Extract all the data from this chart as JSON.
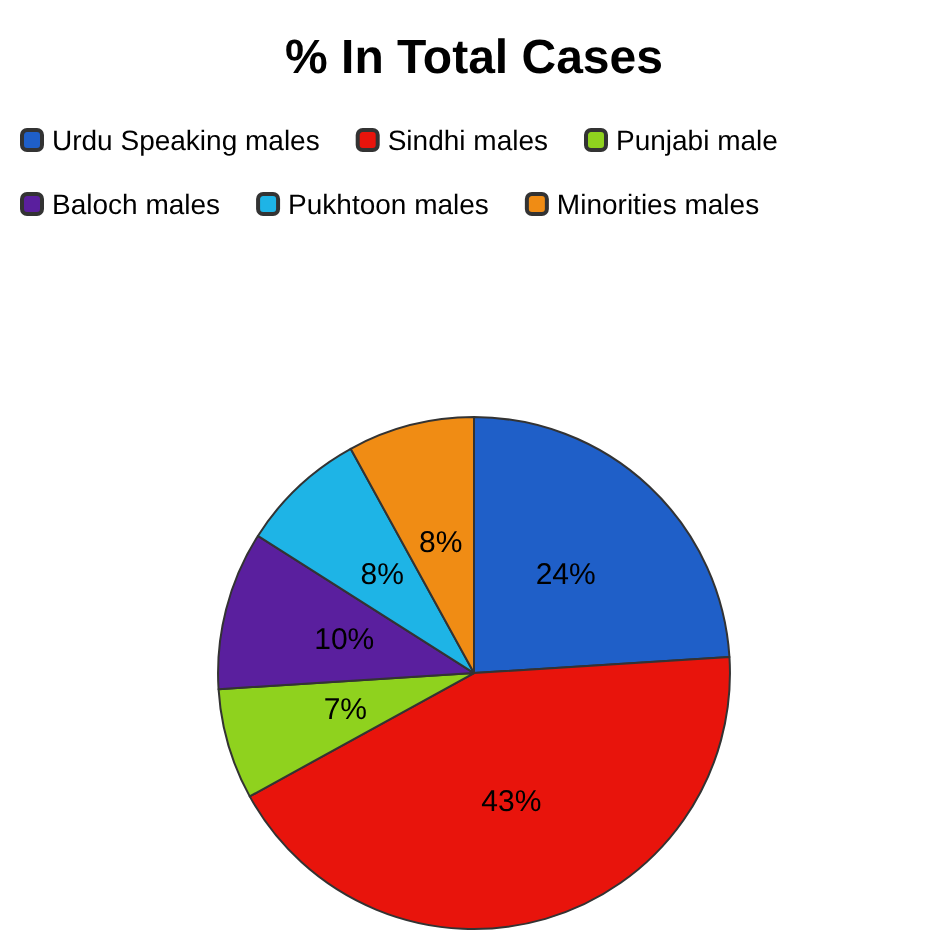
{
  "chart_data": {
    "type": "pie",
    "title": "% In Total Cases",
    "categories": [
      "Urdu Speaking males",
      "Sindhi males",
      "Punjabi male",
      "Baloch males",
      "Pukhtoon males",
      "Minorities males"
    ],
    "values": [
      24,
      43,
      7,
      10,
      8,
      8
    ],
    "colors": [
      "#1f5fc8",
      "#e8140c",
      "#8fd21e",
      "#5a1f9e",
      "#1eb4e6",
      "#f08c14"
    ],
    "value_labels": [
      "24%",
      "43%",
      "7%",
      "10%",
      "8%",
      "8%"
    ],
    "legend": "top"
  }
}
